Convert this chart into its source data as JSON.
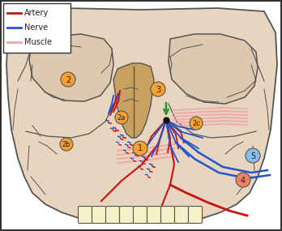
{
  "bg_color": "#f2ede8",
  "skull_fill": "#e8d5c0",
  "skull_edge": "#555555",
  "orbit_fill": "#ddc8b0",
  "nasal_fill": "#c8a060",
  "artery_color": "#cc1111",
  "nerve_color": "#2255cc",
  "muscle_color": "#f0a8a8",
  "label_fill": "#f5a030",
  "label_fill5": "#88bbee",
  "label_fill4": "#f08060",
  "green_color": "#229922",
  "legend_labels": [
    "Artery",
    "Nerve",
    "Muscle"
  ],
  "legend_colors": [
    "#cc1111",
    "#2255cc",
    "#f0a8a8"
  ],
  "white": "#ffffff",
  "border_color": "#333333"
}
